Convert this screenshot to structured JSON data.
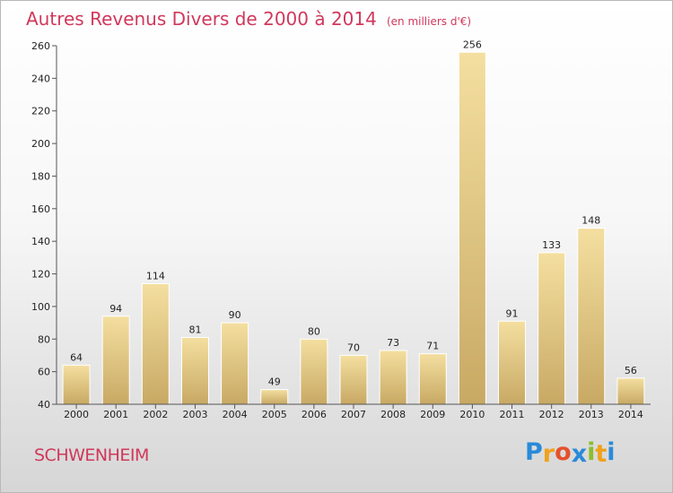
{
  "page": {
    "title": "Autres Revenus Divers de 2000 à 2014",
    "unit": "(en milliers d'€)",
    "commune": "SCHWENHEIM",
    "logo": {
      "letters": [
        "P",
        "r",
        "o",
        "x",
        "i",
        "t",
        "i"
      ],
      "colors": [
        "#2a8ad8",
        "#f0a21c",
        "#e5502a",
        "#2a8ad8",
        "#8bbf2a",
        "#f0a21c",
        "#2a8ad8"
      ]
    }
  },
  "chart_data": {
    "type": "bar",
    "title": "Autres Revenus Divers de 2000 à 2014",
    "subtitle": "(en milliers d'€)",
    "categories": [
      "2000",
      "2001",
      "2002",
      "2003",
      "2004",
      "2005",
      "2006",
      "2007",
      "2008",
      "2009",
      "2010",
      "2011",
      "2012",
      "2013",
      "2014"
    ],
    "values": [
      64,
      94,
      114,
      81,
      90,
      49,
      80,
      70,
      73,
      71,
      256,
      91,
      133,
      148,
      56
    ],
    "data_labels": [
      "64",
      "94",
      "114",
      "81",
      "90",
      "49",
      "80",
      "70",
      "73",
      "71",
      "256",
      "91",
      "133",
      "148",
      "56"
    ],
    "ylim": [
      40,
      260
    ],
    "yticks": [
      40,
      60,
      80,
      100,
      120,
      140,
      160,
      180,
      200,
      220,
      240,
      260
    ],
    "ytick_labels": [
      "40",
      "60",
      "80",
      "100",
      "120",
      "140",
      "160",
      "180",
      "200",
      "220",
      "240",
      "260"
    ],
    "grid": false,
    "colors": {
      "bar_light": "#f4dfa0",
      "bar_dark": "#c8a964",
      "axis": "#555555"
    }
  }
}
